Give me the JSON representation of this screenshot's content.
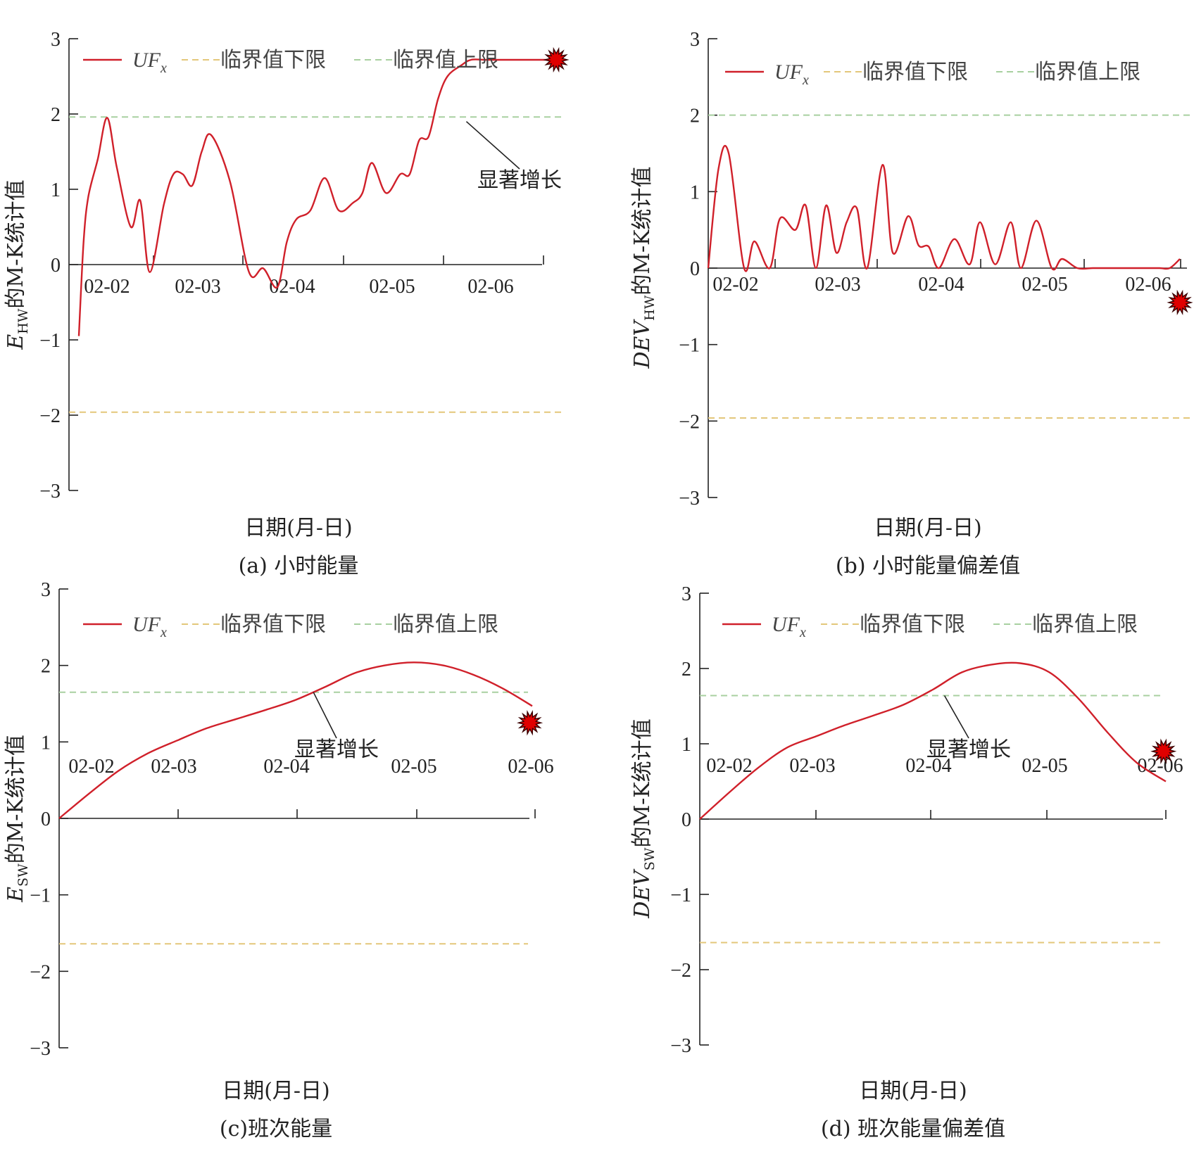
{
  "colors": {
    "uf": "#d0202a",
    "lower": "#e3c77a",
    "upper": "#a8d0a0",
    "axis": "#222222",
    "marker": "#e00000"
  },
  "legend": {
    "uf_main": "UF",
    "uf_sub": "x",
    "lower": "临界值下限",
    "upper": "临界值上限"
  },
  "chart_data": [
    {
      "type": "line",
      "caption": "(a) 小时能量",
      "xlabel": "日期(月-日)",
      "ylabel_main": "E",
      "ylabel_sub": "HW",
      "ylabel_rest": "的M-K统计值",
      "ylim": [
        -3,
        3
      ],
      "yticks": [
        "3",
        "2",
        "1",
        "0",
        "−1",
        "−2",
        "−3"
      ],
      "x_ticks": [
        "02-02",
        "02-03",
        "02-04",
        "02-05",
        "02-06"
      ],
      "x_range": [
        -0.1,
        4.95
      ],
      "lower_limit": -1.96,
      "upper_limit": 1.96,
      "annotation": "显著增长",
      "annotation_point": [
        4.0,
        1.9
      ],
      "marker": [
        4.95,
        2.72
      ],
      "series": [
        {
          "name": "UF",
          "x": [
            -0.1,
            -0.05,
            0.0,
            0.1,
            0.2,
            0.3,
            0.45,
            0.55,
            0.65,
            0.8,
            0.9,
            1.0,
            1.1,
            1.2,
            1.3,
            1.5,
            1.7,
            1.85,
            2.0,
            2.1,
            2.2,
            2.35,
            2.5,
            2.65,
            2.8,
            2.9,
            3.0,
            3.15,
            3.3,
            3.4,
            3.5,
            3.6,
            3.7,
            3.8,
            3.95,
            4.05,
            4.2,
            4.35,
            4.5,
            4.65,
            4.8,
            4.95
          ],
          "y": [
            -0.95,
            0.3,
            0.9,
            1.4,
            1.95,
            1.3,
            0.5,
            0.85,
            -0.1,
            0.8,
            1.2,
            1.2,
            1.05,
            1.5,
            1.72,
            1.1,
            -0.1,
            -0.05,
            -0.3,
            0.3,
            0.6,
            0.72,
            1.15,
            0.72,
            0.82,
            0.95,
            1.35,
            0.95,
            1.2,
            1.2,
            1.65,
            1.7,
            2.2,
            2.5,
            2.65,
            2.72,
            2.72,
            2.72,
            2.72,
            2.72,
            2.72,
            2.72
          ]
        }
      ]
    },
    {
      "type": "line",
      "caption": "(b) 小时能量偏差值",
      "xlabel": "日期(月-日)",
      "ylabel_main": "DEV",
      "ylabel_sub": "HW",
      "ylabel_rest": "的M-K统计值",
      "ylim": [
        -3,
        3
      ],
      "yticks": [
        "3",
        "2",
        "1",
        "0",
        "−1",
        "−2",
        "−3"
      ],
      "x_ticks": [
        "02-02",
        "02-03",
        "02-04",
        "02-05",
        "02-06"
      ],
      "x_range": [
        -0.15,
        4.45
      ],
      "lower_limit": -1.96,
      "upper_limit": 2.0,
      "marker": [
        4.45,
        -0.45
      ],
      "series": [
        {
          "name": "UF",
          "x": [
            -0.15,
            -0.05,
            0.05,
            0.2,
            0.3,
            0.45,
            0.55,
            0.7,
            0.8,
            0.9,
            1.0,
            1.1,
            1.2,
            1.3,
            1.4,
            1.55,
            1.65,
            1.8,
            1.9,
            2.0,
            2.1,
            2.25,
            2.4,
            2.5,
            2.65,
            2.8,
            2.9,
            3.05,
            3.2,
            3.3,
            3.45,
            3.6,
            3.7,
            3.85,
            3.95,
            4.1,
            4.25,
            4.35,
            4.45
          ],
          "y": [
            0.0,
            1.3,
            1.5,
            0.0,
            0.35,
            0.0,
            0.65,
            0.5,
            0.82,
            0.0,
            0.82,
            0.2,
            0.6,
            0.78,
            0.0,
            1.35,
            0.2,
            0.68,
            0.3,
            0.28,
            0.0,
            0.38,
            0.05,
            0.6,
            0.05,
            0.6,
            0.0,
            0.62,
            0.0,
            0.12,
            0.0,
            0.0,
            0.0,
            0.0,
            0.0,
            0.0,
            0.0,
            0.0,
            0.12
          ]
        }
      ]
    },
    {
      "type": "line",
      "caption": "(c)班次能量",
      "xlabel": "日期(月-日)",
      "ylabel_main": "E",
      "ylabel_sub": "SW",
      "ylabel_rest": "的M-K统计值",
      "ylim": [
        -3,
        3
      ],
      "yticks": [
        "3",
        "2",
        "1",
        "0",
        "−1",
        "−2",
        "−3"
      ],
      "x_ticks": [
        "02-02",
        "02-03",
        "02-04",
        "02-05",
        "02-06"
      ],
      "x_range": [
        0,
        4
      ],
      "lower_limit": -1.64,
      "upper_limit": 1.65,
      "annotation": "显著增长",
      "annotation_point": [
        2.15,
        1.65
      ],
      "marker": [
        3.98,
        1.25
      ],
      "series": [
        {
          "name": "UF",
          "x": [
            0.0,
            0.25,
            0.5,
            0.75,
            1.0,
            1.25,
            1.5,
            1.75,
            2.0,
            2.25,
            2.5,
            2.75,
            3.0,
            3.25,
            3.5,
            3.75,
            4.0
          ],
          "y": [
            0.0,
            0.32,
            0.62,
            0.85,
            1.02,
            1.18,
            1.3,
            1.42,
            1.55,
            1.72,
            1.9,
            2.0,
            2.04,
            2.0,
            1.88,
            1.7,
            1.47
          ]
        }
      ]
    },
    {
      "type": "line",
      "caption": "(d) 班次能量偏差值",
      "xlabel": "日期(月-日)",
      "ylabel_main": "DEV",
      "ylabel_sub": "SW",
      "ylabel_rest": "的M-K统计值",
      "ylim": [
        -3,
        3
      ],
      "yticks": [
        "3",
        "2",
        "1",
        "0",
        "−1",
        "−2",
        "−3"
      ],
      "x_ticks": [
        "02-02",
        "02-03",
        "02-04",
        "02-05",
        "02-06"
      ],
      "x_range": [
        0,
        4
      ],
      "lower_limit": -1.64,
      "upper_limit": 1.64,
      "annotation": "显著增长",
      "annotation_point": [
        2.1,
        1.64
      ],
      "marker": [
        3.98,
        0.9
      ],
      "series": [
        {
          "name": "UF",
          "x": [
            0.0,
            0.25,
            0.5,
            0.75,
            1.0,
            1.25,
            1.5,
            1.75,
            2.0,
            2.25,
            2.5,
            2.75,
            3.0,
            3.25,
            3.5,
            3.75,
            4.0
          ],
          "y": [
            0.0,
            0.35,
            0.68,
            0.95,
            1.1,
            1.25,
            1.38,
            1.52,
            1.72,
            1.95,
            2.05,
            2.07,
            1.95,
            1.6,
            1.15,
            0.75,
            0.5
          ]
        }
      ]
    }
  ]
}
